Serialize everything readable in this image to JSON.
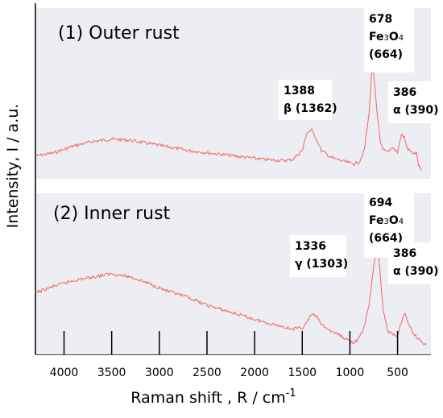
{
  "chart_data": {
    "type": "line",
    "xlabel": "Raman shift , R / cm",
    "xlabel_sup": "-1",
    "ylabel": "Intensity, I / a.u.",
    "xlim": [
      4300,
      150
    ],
    "x_reversed": true,
    "x_ticks": [
      4000,
      3500,
      3000,
      2500,
      2000,
      1500,
      1000,
      500
    ],
    "x_tick_labels": [
      "4000",
      "3500",
      "3000",
      "2500",
      "2000",
      "1500",
      "1000",
      "500"
    ],
    "line_color": "#f07070",
    "panel_color": "#eceef4",
    "panels": [
      {
        "title": "(1) Outer rust",
        "series_points": [
          [
            4300,
            0.13
          ],
          [
            4100,
            0.16
          ],
          [
            3900,
            0.22
          ],
          [
            3700,
            0.26
          ],
          [
            3500,
            0.28
          ],
          [
            3300,
            0.27
          ],
          [
            3100,
            0.24
          ],
          [
            2900,
            0.21
          ],
          [
            2700,
            0.18
          ],
          [
            2500,
            0.16
          ],
          [
            2300,
            0.14
          ],
          [
            2100,
            0.12
          ],
          [
            1900,
            0.1
          ],
          [
            1700,
            0.09
          ],
          [
            1600,
            0.1
          ],
          [
            1500,
            0.18
          ],
          [
            1450,
            0.34
          ],
          [
            1400,
            0.36
          ],
          [
            1350,
            0.28
          ],
          [
            1300,
            0.18
          ],
          [
            1200,
            0.12
          ],
          [
            1100,
            0.09
          ],
          [
            1000,
            0.07
          ],
          [
            950,
            0.06
          ],
          [
            900,
            0.08
          ],
          [
            850,
            0.18
          ],
          [
            800,
            0.5
          ],
          [
            770,
            0.9
          ],
          [
            750,
            0.86
          ],
          [
            720,
            0.55
          ],
          [
            680,
            0.25
          ],
          [
            640,
            0.18
          ],
          [
            600,
            0.16
          ],
          [
            550,
            0.2
          ],
          [
            500,
            0.17
          ],
          [
            460,
            0.32
          ],
          [
            430,
            0.3
          ],
          [
            400,
            0.2
          ],
          [
            350,
            0.16
          ],
          [
            300,
            0.15
          ],
          [
            280,
            0.05
          ],
          [
            250,
            0.0
          ]
        ],
        "annotations": [
          {
            "lines": [
              "1388",
              "β  (1362)"
            ]
          },
          {
            "lines": [
              "678",
              "Fe3O4",
              "(664)"
            ]
          },
          {
            "lines": [
              "386",
              "α (390)"
            ]
          }
        ]
      },
      {
        "title": "(2) Inner rust",
        "series_points": [
          [
            4300,
            0.46
          ],
          [
            4100,
            0.52
          ],
          [
            3900,
            0.57
          ],
          [
            3700,
            0.6
          ],
          [
            3500,
            0.63
          ],
          [
            3300,
            0.6
          ],
          [
            3100,
            0.54
          ],
          [
            2900,
            0.47
          ],
          [
            2700,
            0.42
          ],
          [
            2500,
            0.35
          ],
          [
            2300,
            0.3
          ],
          [
            2100,
            0.25
          ],
          [
            1900,
            0.2
          ],
          [
            1700,
            0.16
          ],
          [
            1600,
            0.14
          ],
          [
            1500,
            0.15
          ],
          [
            1450,
            0.2
          ],
          [
            1400,
            0.27
          ],
          [
            1350,
            0.25
          ],
          [
            1300,
            0.18
          ],
          [
            1200,
            0.12
          ],
          [
            1100,
            0.08
          ],
          [
            1000,
            0.03
          ],
          [
            950,
            0.02
          ],
          [
            900,
            0.06
          ],
          [
            850,
            0.16
          ],
          [
            800,
            0.35
          ],
          [
            750,
            0.7
          ],
          [
            720,
            0.86
          ],
          [
            700,
            0.82
          ],
          [
            680,
            0.6
          ],
          [
            650,
            0.3
          ],
          [
            600,
            0.12
          ],
          [
            550,
            0.09
          ],
          [
            500,
            0.08
          ],
          [
            450,
            0.24
          ],
          [
            420,
            0.27
          ],
          [
            390,
            0.2
          ],
          [
            350,
            0.12
          ],
          [
            300,
            0.07
          ],
          [
            250,
            0.03
          ],
          [
            200,
            0.0
          ]
        ],
        "annotations": [
          {
            "lines": [
              "1336",
              "γ (1303)"
            ]
          },
          {
            "lines": [
              "694",
              "Fe3O4",
              "(664)"
            ]
          },
          {
            "lines": [
              "386",
              "α (390)"
            ]
          }
        ]
      }
    ]
  }
}
